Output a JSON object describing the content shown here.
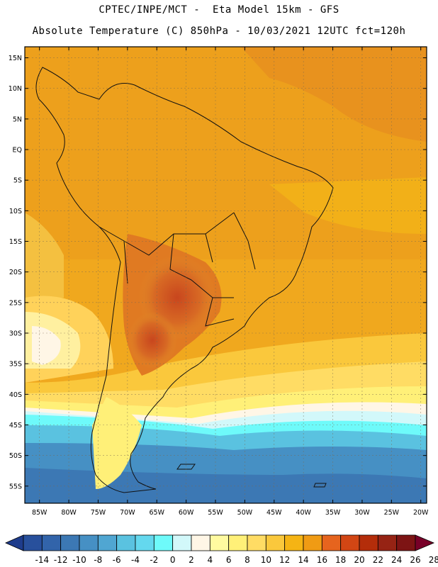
{
  "header": {
    "line1": "CPTEC/INPE/MCT -  Eta Model 15km - GFS",
    "line2": "Absolute Temperature (C) 850hPa - 10/03/2021 12UTC fct=120h"
  },
  "map": {
    "lat_ticks": [
      "15N",
      "10N",
      "5N",
      "EQ",
      "5S",
      "10S",
      "15S",
      "20S",
      "25S",
      "30S",
      "35S",
      "40S",
      "45S",
      "50S",
      "55S"
    ],
    "lon_ticks": [
      "85W",
      "80W",
      "75W",
      "70W",
      "65W",
      "60W",
      "55W",
      "50W",
      "45W",
      "40W",
      "35W",
      "30W",
      "25W",
      "20W"
    ],
    "lat_values": [
      15,
      10,
      5,
      0,
      -5,
      -10,
      -15,
      -20,
      -25,
      -30,
      -35,
      -40,
      -45,
      -50,
      -55
    ],
    "lon_values": [
      -85,
      -80,
      -75,
      -70,
      -65,
      -60,
      -55,
      -50,
      -45,
      -40,
      -35,
      -30,
      -25,
      -20
    ]
  },
  "colorbar": {
    "labels": [
      "-14",
      "-12",
      "-10",
      "-8",
      "-6",
      "-4",
      "-2",
      "0",
      "2",
      "4",
      "6",
      "8",
      "10",
      "12",
      "14",
      "16",
      "18",
      "20",
      "22",
      "24",
      "26",
      "28"
    ],
    "colors": [
      "#1e3c8c",
      "#28509c",
      "#3264aa",
      "#3c78b4",
      "#4690c4",
      "#50a6d2",
      "#5ac2e0",
      "#64d8ee",
      "#6efafa",
      "#d2f8fa",
      "#fff6e6",
      "#fffaa0",
      "#fff078",
      "#ffdc64",
      "#fac83c",
      "#f5b414",
      "#f09b14",
      "#e6641e",
      "#d24614",
      "#b42d0a",
      "#962314",
      "#7d1414",
      "#780028"
    ]
  }
}
